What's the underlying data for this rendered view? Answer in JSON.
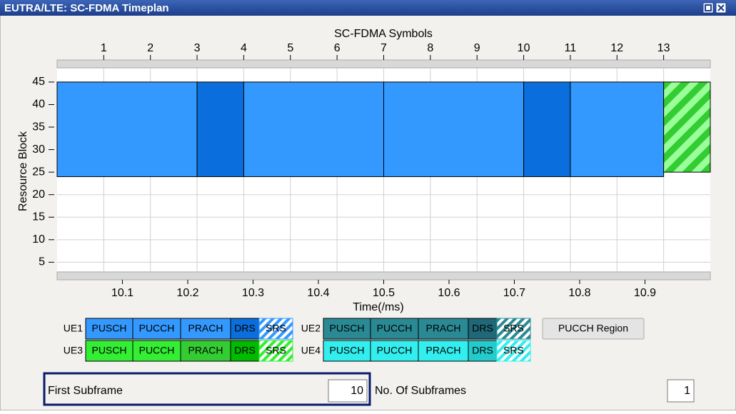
{
  "window": {
    "title": "EUTRA/LTE: SC-FDMA Timeplan"
  },
  "chart": {
    "type": "timeplan",
    "top_axis_label": "SC-FDMA Symbols",
    "y_axis_label": "Resource Block",
    "x_axis_label": "Time(/ms)",
    "symbol_lim": [
      0,
      14
    ],
    "symbol_ticks": [
      1,
      2,
      3,
      4,
      5,
      6,
      7,
      8,
      9,
      10,
      11,
      12,
      13
    ],
    "xlim": [
      10,
      11
    ],
    "xticks": [
      10.1,
      10.2,
      10.3,
      10.4,
      10.5,
      10.6,
      10.7,
      10.8,
      10.9
    ],
    "ylim": [
      3,
      48
    ],
    "yticks": [
      5,
      10,
      15,
      20,
      25,
      30,
      35,
      40,
      45
    ],
    "grid": true,
    "bursts": [
      {
        "color": "#3399ff",
        "start": 0,
        "end": 3,
        "rb_start": 24,
        "rb_end": 45
      },
      {
        "color": "#0a6fdd",
        "start": 3,
        "end": 4,
        "rb_start": 24,
        "rb_end": 45
      },
      {
        "color": "#3399ff",
        "start": 4,
        "end": 7,
        "rb_start": 24,
        "rb_end": 45
      },
      {
        "color": "#3399ff",
        "start": 7,
        "end": 10,
        "rb_start": 24,
        "rb_end": 45
      },
      {
        "color": "#0a6fdd",
        "start": 10,
        "end": 11,
        "rb_start": 24,
        "rb_end": 45
      },
      {
        "color": "#3399ff",
        "start": 11,
        "end": 13,
        "rb_start": 24,
        "rb_end": 45
      },
      {
        "color": "#33cc33",
        "hatched": true,
        "start": 13,
        "end": 14,
        "rb_start": 25,
        "rb_end": 45
      }
    ]
  },
  "legend": {
    "rows": [
      {
        "ue": "UE1",
        "items": [
          {
            "label": "PUSCH",
            "color": "#3399ff"
          },
          {
            "label": "PUCCH",
            "color": "#3399ff"
          },
          {
            "label": "PRACH",
            "color": "#3399ff"
          },
          {
            "label": "DRS",
            "color": "#0a6fdd"
          },
          {
            "label": "SRS",
            "color": "#3399ff",
            "hatched": true
          }
        ]
      },
      {
        "ue": "UE2",
        "items": [
          {
            "label": "PUSCH",
            "color": "#2a8a94"
          },
          {
            "label": "PUCCH",
            "color": "#2a8a94"
          },
          {
            "label": "PRACH",
            "color": "#2a8a94"
          },
          {
            "label": "DRS",
            "color": "#1f6878"
          },
          {
            "label": "SRS",
            "color": "#2a8a94",
            "hatched": true
          }
        ]
      },
      {
        "ue": "UE3",
        "items": [
          {
            "label": "PUSCH",
            "color": "#33ee33"
          },
          {
            "label": "PUCCH",
            "color": "#33ee33"
          },
          {
            "label": "PRACH",
            "color": "#33cc33"
          },
          {
            "label": "DRS",
            "color": "#00bb00"
          },
          {
            "label": "SRS",
            "color": "#33ee33",
            "hatched": true
          }
        ]
      },
      {
        "ue": "UE4",
        "items": [
          {
            "label": "PUSCH",
            "color": "#33eeee"
          },
          {
            "label": "PUCCH",
            "color": "#33eeee"
          },
          {
            "label": "PRACH",
            "color": "#33eeee"
          },
          {
            "label": "DRS",
            "color": "#22cccc"
          },
          {
            "label": "SRS",
            "color": "#33eeee",
            "hatched": true
          }
        ]
      }
    ]
  },
  "button": {
    "label": "PUCCH Region"
  },
  "controls": {
    "first_subframe": {
      "label": "First Subframe",
      "value": 10
    },
    "num_subframes": {
      "label": "No. Of Subframes",
      "value": 1
    }
  }
}
